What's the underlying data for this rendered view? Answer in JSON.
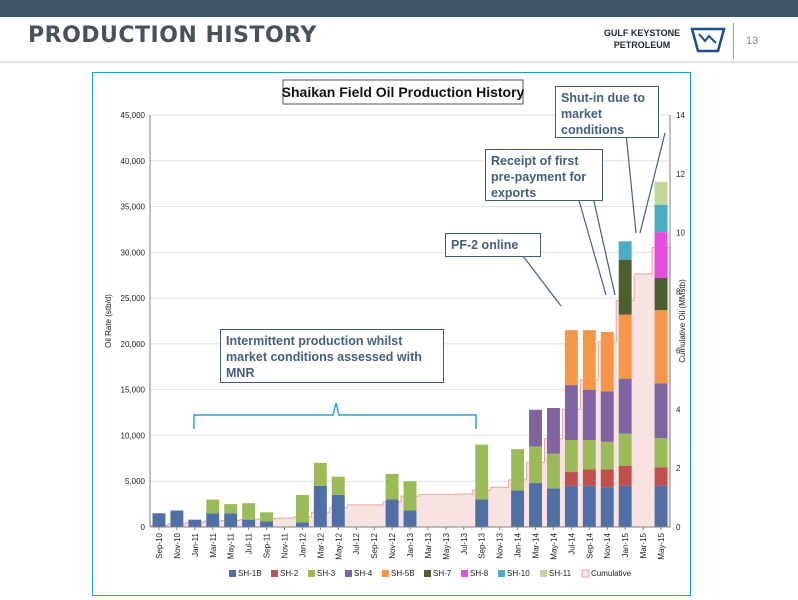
{
  "header": {
    "title": "PRODUCTION HISTORY",
    "logo_line1": "GULF KEYSTONE",
    "logo_line2": "PETROLEUM",
    "page_number": "13"
  },
  "colors": {
    "topbar": "#3f5468",
    "frame": "#1e9ad6",
    "callout_border": "#3f5d7c",
    "callout_text": "#44607f",
    "cumulative_fill": "#f9e3e2",
    "cumulative_line": "#e8a6a3"
  },
  "callouts": {
    "intermittent": "Intermittent production whilst market conditions assessed with MNR",
    "pf2": "PF-2 online",
    "prepayment": "Receipt of first pre-payment for exports",
    "shutin": "Shut-in due to market conditions"
  },
  "chart_data": {
    "type": "area",
    "title": "Shaikan Field Oil Production History",
    "ylabel": "Oil Rate (stb/d)",
    "y2label": "Cumulative Oil (MMstb)",
    "ylim": [
      0,
      45000
    ],
    "y2lim": [
      0,
      14
    ],
    "yticks": [
      "0",
      "5,000",
      "10,000",
      "15,000",
      "20,000",
      "25,000",
      "30,000",
      "35,000",
      "40,000",
      "45,000"
    ],
    "y2ticks": [
      "0",
      "2",
      "4",
      "6",
      "8",
      "10",
      "12",
      "14"
    ],
    "x": [
      "Sep-10",
      "Nov-10",
      "Jan-11",
      "Mar-11",
      "May-11",
      "Jul-11",
      "Sep-11",
      "Nov-11",
      "Jan-12",
      "Mar-12",
      "May-12",
      "Jul-12",
      "Sep-12",
      "Nov-12",
      "Jan-13",
      "Mar-13",
      "May-13",
      "Jul-13",
      "Sep-13",
      "Nov-13",
      "Jan-14",
      "Mar-14",
      "May-14",
      "Jul-14",
      "Sep-14",
      "Nov-14",
      "Jan-15",
      "Mar-15",
      "May-15"
    ],
    "legend_position": "bottom",
    "grid": true,
    "series": [
      {
        "name": "SH-1B",
        "color": "#4f6fa6",
        "values": [
          1500,
          1800,
          800,
          1500,
          1500,
          800,
          600,
          0,
          500,
          4500,
          3500,
          0,
          0,
          3000,
          1800,
          0,
          0,
          0,
          3000,
          0,
          4000,
          4800,
          4200,
          4500,
          4500,
          4300,
          4500,
          0,
          4500
        ]
      },
      {
        "name": "SH-2",
        "color": "#c0504d",
        "values": [
          0,
          0,
          0,
          0,
          0,
          0,
          0,
          0,
          0,
          0,
          0,
          0,
          0,
          0,
          0,
          0,
          0,
          0,
          0,
          0,
          0,
          0,
          0,
          1500,
          1800,
          2000,
          2200,
          0,
          2000
        ]
      },
      {
        "name": "SH-3",
        "color": "#9bbb59",
        "values": [
          0,
          0,
          0,
          1500,
          1000,
          1800,
          1000,
          0,
          3000,
          2500,
          2000,
          0,
          0,
          2800,
          3200,
          0,
          0,
          0,
          6000,
          0,
          4500,
          4000,
          3800,
          3500,
          3200,
          3000,
          3500,
          0,
          3200
        ]
      },
      {
        "name": "SH-4",
        "color": "#8064a2",
        "values": [
          0,
          0,
          0,
          0,
          0,
          0,
          0,
          0,
          0,
          0,
          0,
          0,
          0,
          0,
          0,
          0,
          0,
          0,
          0,
          0,
          0,
          4000,
          5000,
          6000,
          5500,
          5500,
          6000,
          0,
          6000
        ]
      },
      {
        "name": "SH-5B",
        "color": "#f79646",
        "values": [
          0,
          0,
          0,
          0,
          0,
          0,
          0,
          0,
          0,
          0,
          0,
          0,
          0,
          0,
          0,
          0,
          0,
          0,
          0,
          0,
          0,
          0,
          0,
          6000,
          6500,
          6500,
          7000,
          0,
          8000
        ]
      },
      {
        "name": "SH-7",
        "color": "#4d5e30",
        "values": [
          0,
          0,
          0,
          0,
          0,
          0,
          0,
          0,
          0,
          0,
          0,
          0,
          0,
          0,
          0,
          0,
          0,
          0,
          0,
          0,
          0,
          0,
          0,
          0,
          0,
          0,
          6000,
          0,
          3500
        ]
      },
      {
        "name": "SH-8",
        "color": "#e84be0",
        "values": [
          0,
          0,
          0,
          0,
          0,
          0,
          0,
          0,
          0,
          0,
          0,
          0,
          0,
          0,
          0,
          0,
          0,
          0,
          0,
          0,
          0,
          0,
          0,
          0,
          0,
          0,
          0,
          0,
          5000
        ]
      },
      {
        "name": "SH-10",
        "color": "#4bacc6",
        "values": [
          0,
          0,
          0,
          0,
          0,
          0,
          0,
          0,
          0,
          0,
          0,
          0,
          0,
          0,
          0,
          0,
          0,
          0,
          0,
          0,
          0,
          0,
          0,
          0,
          0,
          0,
          2000,
          0,
          3000
        ]
      },
      {
        "name": "SH-11",
        "color": "#c4d79b",
        "values": [
          0,
          0,
          0,
          0,
          0,
          0,
          0,
          0,
          0,
          0,
          0,
          0,
          0,
          0,
          0,
          0,
          0,
          0,
          0,
          0,
          0,
          0,
          0,
          0,
          0,
          0,
          0,
          0,
          2500
        ]
      }
    ],
    "cumulative": {
      "name": "Cumulative",
      "values": [
        0.05,
        0.1,
        0.15,
        0.2,
        0.22,
        0.25,
        0.28,
        0.3,
        0.35,
        0.5,
        0.65,
        0.75,
        0.75,
        0.85,
        1.05,
        1.1,
        1.1,
        1.12,
        1.25,
        1.35,
        1.6,
        2.2,
        3.0,
        4.0,
        5.0,
        6.3,
        7.7,
        8.6,
        9.5
      ]
    }
  }
}
